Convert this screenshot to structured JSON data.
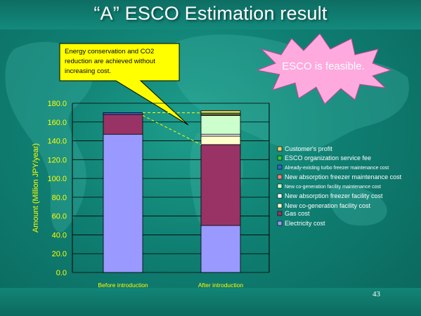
{
  "slide": {
    "title": "“A” ESCO Estimation result",
    "page_number": "43",
    "callout_text": "Energy conservation and CO2 reduction are achieved without increasing cost.",
    "burst_text": "ESCO is feasible."
  },
  "colors": {
    "background": "#138a7c",
    "callout_fill": "#ffff00",
    "burst_fill": "#ffaade",
    "axis_label": "#ffff00",
    "grid": "#000000"
  },
  "chart_data": {
    "type": "bar",
    "stacked": true,
    "categories": [
      "Before introduction",
      "After introduction"
    ],
    "ylabel": "Amount (Million JPY/year)",
    "ylim": [
      0,
      180
    ],
    "yticks": [
      "0.0",
      "20.0",
      "40.0",
      "60.0",
      "80.0",
      "100.0",
      "120.0",
      "140.0",
      "160.0",
      "180.0"
    ],
    "grid": true,
    "legend_position": "right",
    "series": [
      {
        "name": "Electricity cost",
        "color": "#9999ff",
        "values": [
          147,
          50
        ]
      },
      {
        "name": "Gas cost",
        "color": "#993366",
        "values": [
          21,
          86
        ]
      },
      {
        "name": "New co-generation facility cost",
        "color": "#ffffcc",
        "values": [
          0,
          9
        ]
      },
      {
        "name": "New absorption freezer facility cost",
        "color": "#ffffff",
        "values": [
          0,
          2
        ]
      },
      {
        "name": "New co-generation facility maintenance cost",
        "color": "#ccffcc",
        "values": [
          0,
          20
        ]
      },
      {
        "name": "New absorption freezer maintenance cost",
        "color": "#ff8080",
        "values": [
          0,
          1
        ]
      },
      {
        "name": "Already-existing turbo freezer maintenance cost",
        "color": "#3366cc",
        "values": [
          2,
          0
        ]
      },
      {
        "name": "ESCO organization service fee",
        "color": "#33cc33",
        "values": [
          0,
          1.5
        ]
      },
      {
        "name": "Customer's profit",
        "color": "#ffcc66",
        "values": [
          0,
          2.5
        ]
      }
    ],
    "legend_order": [
      "Customer's profit",
      "ESCO organization service fee",
      "Already-existing turbo freezer maintenance cost",
      "New absorption freezer maintenance cost",
      "New co-generation facility maintenance cost",
      "New absorption freezer facility cost",
      "New co-generation facility cost",
      "Gas cost",
      "Electricity cost"
    ]
  }
}
